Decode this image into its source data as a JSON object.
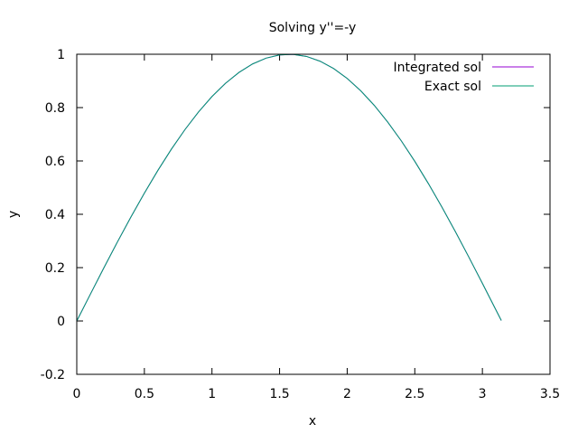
{
  "chart_data": {
    "type": "line",
    "title": "Solving y''=-y",
    "xlabel": "x",
    "ylabel": "y",
    "xlim": [
      0,
      3.5
    ],
    "ylim": [
      -0.2,
      1
    ],
    "xticks": [
      0,
      0.5,
      1,
      1.5,
      2,
      2.5,
      3,
      3.5
    ],
    "xtick_labels": [
      "0",
      "0.5",
      "1",
      "1.5",
      "2",
      "2.5",
      "3",
      "3.5"
    ],
    "yticks": [
      -0.2,
      0,
      0.2,
      0.4,
      0.6,
      0.8,
      1
    ],
    "ytick_labels": [
      "-0.2",
      "0",
      "0.2",
      "0.4",
      "0.6",
      "0.8",
      "1"
    ],
    "grid": false,
    "legend_position": "top-right",
    "series": [
      {
        "name": "Integrated sol",
        "color": "#9400d3",
        "x": [
          0,
          0.1,
          0.2,
          0.3,
          0.4,
          0.5,
          0.6,
          0.7,
          0.8,
          0.9,
          1.0,
          1.1,
          1.2,
          1.3,
          1.4,
          1.5,
          1.6,
          1.7,
          1.8,
          1.9,
          2.0,
          2.1,
          2.2,
          2.3,
          2.4,
          2.5,
          2.6,
          2.7,
          2.8,
          2.9,
          3.0,
          3.1,
          3.14
        ],
        "y": [
          0,
          0.0998,
          0.1987,
          0.2955,
          0.3894,
          0.4794,
          0.5646,
          0.6442,
          0.7174,
          0.7833,
          0.8415,
          0.8912,
          0.932,
          0.9636,
          0.9854,
          0.9975,
          0.9996,
          0.9917,
          0.9738,
          0.9463,
          0.9093,
          0.8632,
          0.8085,
          0.7457,
          0.6755,
          0.5985,
          0.5155,
          0.4274,
          0.335,
          0.2392,
          0.1411,
          0.0416,
          0.0016
        ]
      },
      {
        "name": "Exact sol",
        "color": "#009e73",
        "x": [
          0,
          0.1,
          0.2,
          0.3,
          0.4,
          0.5,
          0.6,
          0.7,
          0.8,
          0.9,
          1.0,
          1.1,
          1.2,
          1.3,
          1.4,
          1.5,
          1.6,
          1.7,
          1.8,
          1.9,
          2.0,
          2.1,
          2.2,
          2.3,
          2.4,
          2.5,
          2.6,
          2.7,
          2.8,
          2.9,
          3.0,
          3.1,
          3.14
        ],
        "y": [
          0,
          0.0998,
          0.1987,
          0.2955,
          0.3894,
          0.4794,
          0.5646,
          0.6442,
          0.7174,
          0.7833,
          0.8415,
          0.8912,
          0.932,
          0.9636,
          0.9854,
          0.9975,
          0.9996,
          0.9917,
          0.9738,
          0.9463,
          0.9093,
          0.8632,
          0.8085,
          0.7457,
          0.6755,
          0.5985,
          0.5155,
          0.4274,
          0.335,
          0.2392,
          0.1411,
          0.0416,
          0.0016
        ]
      }
    ]
  }
}
